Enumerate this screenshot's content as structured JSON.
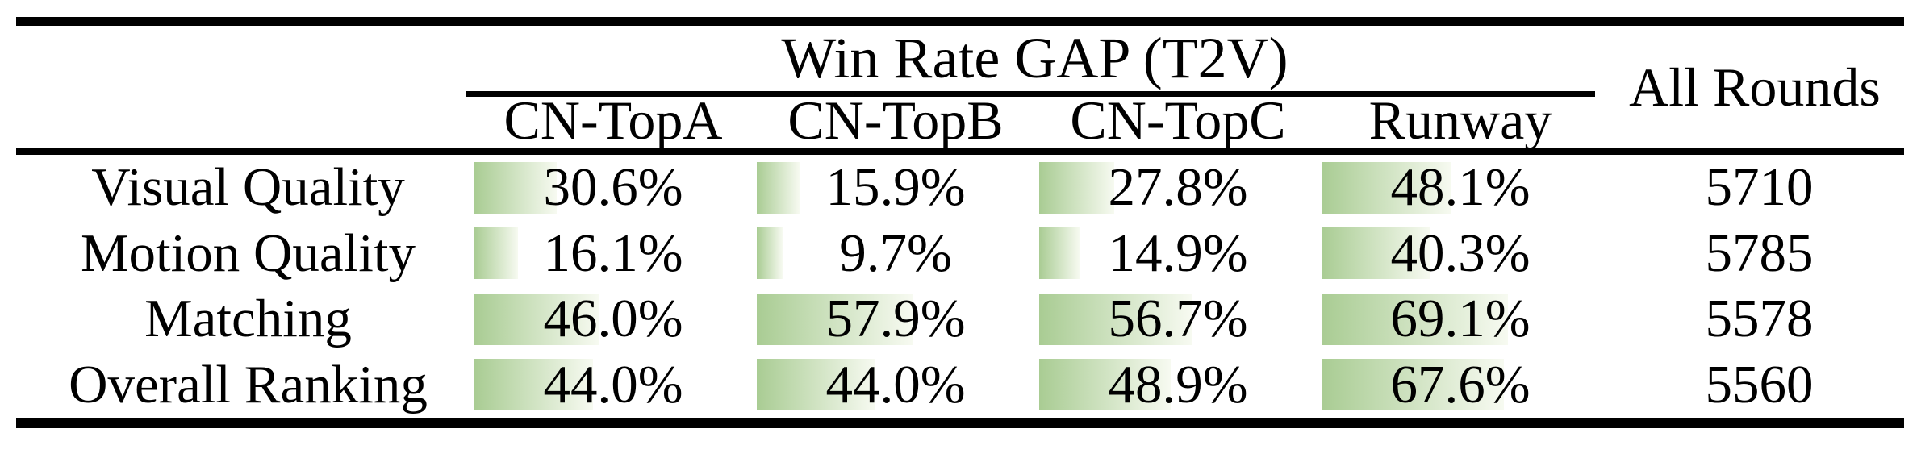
{
  "table": {
    "title": "Win Rate GAP (T2V)",
    "all_rounds_header": "All Rounds",
    "method_columns": [
      "CN-TopA",
      "CN-TopB",
      "CN-TopC",
      "Runway"
    ],
    "rows": [
      {
        "label": "Visual Quality",
        "win_rates": [
          "30.6%",
          "15.9%",
          "27.8%",
          "48.1%"
        ],
        "all_rounds": "5710"
      },
      {
        "label": "Motion Quality",
        "win_rates": [
          "16.1%",
          "9.7%",
          "14.9%",
          "40.3%"
        ],
        "all_rounds": "5785"
      },
      {
        "label": "Matching",
        "win_rates": [
          "46.0%",
          "57.9%",
          "56.7%",
          "69.1%"
        ],
        "all_rounds": "5578"
      },
      {
        "label": "Overall Ranking",
        "win_rates": [
          "44.0%",
          "44.0%",
          "48.9%",
          "67.6%"
        ],
        "all_rounds": "5560"
      }
    ],
    "colors": {
      "bar_green_start": "#a9cc93",
      "bar_green_end": "#f7faf1",
      "rule_black": "#000000"
    }
  },
  "chart_data": {
    "type": "table",
    "title": "Win Rate GAP (T2V)",
    "columns": [
      "",
      "CN-TopA",
      "CN-TopB",
      "CN-TopC",
      "Runway",
      "All Rounds"
    ],
    "rows": [
      [
        "Visual Quality",
        30.6,
        15.9,
        27.8,
        48.1,
        5710
      ],
      [
        "Motion Quality",
        16.1,
        9.7,
        14.9,
        40.3,
        5785
      ],
      [
        "Matching",
        46.0,
        57.9,
        56.7,
        69.1,
        5578
      ],
      [
        "Overall Ranking",
        44.0,
        44.0,
        48.9,
        67.6,
        5560
      ]
    ],
    "notes": "First four data columns are win-rate gap percentages rendered with left-aligned green gradient bars proportional to value; All Rounds column is a count."
  }
}
